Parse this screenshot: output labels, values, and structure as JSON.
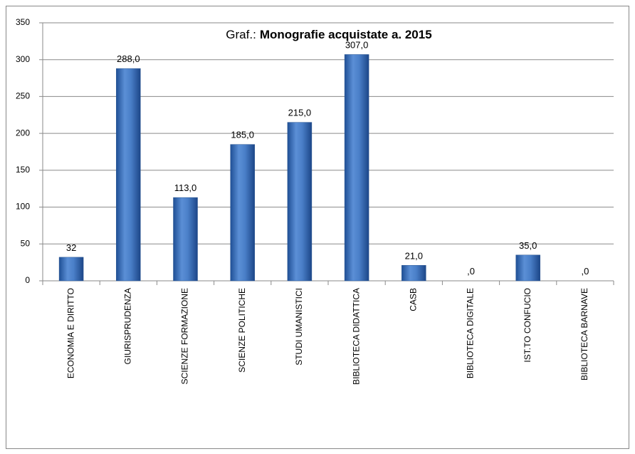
{
  "chart_data": {
    "type": "bar",
    "title": [
      "Graf.:",
      "Monografie acquistate a. 2015"
    ],
    "categories": [
      "ECONOMIA E DIRITTO",
      "GIURISPRUDENZA",
      "SCIENZE FORMAZIONE",
      "SCIENZE POLITICHE",
      "STUDI UMANISTICI",
      "BIBLIOTECA DIDATTICA",
      "CASB",
      "BIBLIOTECA DIGITALE",
      "IST.TO CONFUCIO",
      "BIBLIOTECA BARNAVE"
    ],
    "values": [
      32,
      288,
      113,
      185,
      215,
      307,
      21,
      0,
      35,
      0
    ],
    "value_labels": [
      "32",
      "288,0",
      "113,0",
      "185,0",
      "215,0",
      "307,0",
      "21,0",
      ",0",
      "35,0",
      ",0"
    ],
    "color": "#4f81bd",
    "ylim": [
      0,
      350
    ],
    "yticks": [
      0,
      50,
      100,
      150,
      200,
      250,
      300,
      350
    ],
    "grid": true
  }
}
